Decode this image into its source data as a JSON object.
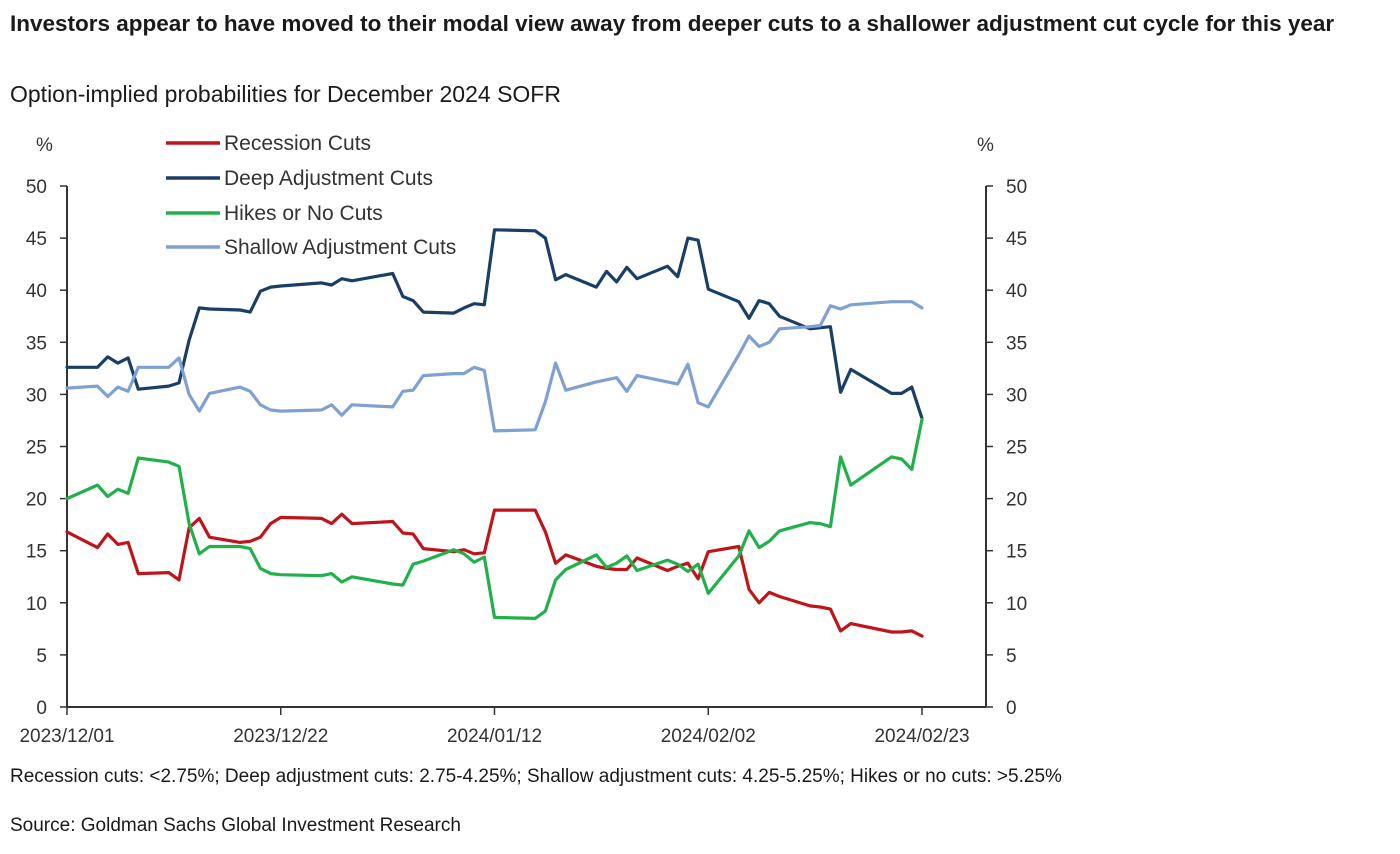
{
  "header": {
    "title": "Investors appear to have moved to their modal view away from deeper cuts to a shallower adjustment cut cycle for this year",
    "subtitle": "Option-implied probabilities for December 2024 SOFR"
  },
  "footer": {
    "note": "Recession cuts: <2.75%; Deep adjustment cuts: 2.75-4.25%; Shallow adjustment cuts: 4.25-5.25%; Hikes or no cuts: >5.25%",
    "source": "Source: Goldman Sachs Global Investment Research"
  },
  "chart_data": {
    "type": "line",
    "title": "Investors appear to have moved to their modal view away from deeper cuts to a shallower adjustment cut cycle for this year",
    "subtitle": "Option-implied probabilities for December 2024 SOFR",
    "y_unit_left": "%",
    "y_unit_right": "%",
    "ylim": [
      0,
      50
    ],
    "y_ticks": [
      0,
      5,
      10,
      15,
      20,
      25,
      30,
      35,
      40,
      45,
      50
    ],
    "x_range": [
      "2023/12/01",
      "2024/02/23"
    ],
    "x_ticks": [
      "2023/12/01",
      "2023/12/22",
      "2024/01/12",
      "2024/02/02",
      "2024/02/23"
    ],
    "grid": false,
    "legend_position": "top-left",
    "colors": {
      "recession": "#c0141b",
      "deep": "#1a3f66",
      "hikes": "#21b14b",
      "shallow": "#7ea1d2",
      "axis": "#333333"
    },
    "series": [
      {
        "name": "Recession Cuts",
        "key": "recession",
        "x": [
          "2023/12/01",
          "2023/12/04",
          "2023/12/05",
          "2023/12/06",
          "2023/12/07",
          "2023/12/08",
          "2023/12/11",
          "2023/12/12",
          "2023/12/13",
          "2023/12/14",
          "2023/12/15",
          "2023/12/18",
          "2023/12/19",
          "2023/12/20",
          "2023/12/21",
          "2023/12/22",
          "2023/12/26",
          "2023/12/27",
          "2023/12/28",
          "2023/12/29",
          "2024/01/02",
          "2024/01/03",
          "2024/01/04",
          "2024/01/05",
          "2024/01/08",
          "2024/01/09",
          "2024/01/10",
          "2024/01/11",
          "2024/01/12",
          "2024/01/16",
          "2024/01/17",
          "2024/01/18",
          "2024/01/19",
          "2024/01/22",
          "2024/01/23",
          "2024/01/24",
          "2024/01/25",
          "2024/01/26",
          "2024/01/29",
          "2024/01/30",
          "2024/01/31",
          "2024/02/01",
          "2024/02/02",
          "2024/02/05",
          "2024/02/06",
          "2024/02/07",
          "2024/02/08",
          "2024/02/09",
          "2024/02/12",
          "2024/02/13",
          "2024/02/14",
          "2024/02/15",
          "2024/02/16",
          "2024/02/20",
          "2024/02/21",
          "2024/02/22",
          "2024/02/23"
        ],
        "values": [
          16.8,
          15.3,
          16.6,
          15.6,
          15.8,
          12.8,
          12.9,
          12.2,
          17.2,
          18.1,
          16.3,
          15.8,
          15.9,
          16.3,
          17.6,
          18.2,
          18.1,
          17.6,
          18.5,
          17.6,
          17.8,
          16.7,
          16.6,
          15.2,
          14.9,
          15.1,
          14.7,
          14.8,
          18.9,
          18.9,
          16.8,
          13.8,
          14.6,
          13.5,
          13.3,
          13.2,
          13.2,
          14.3,
          13.1,
          13.5,
          13.8,
          12.3,
          14.9,
          15.4,
          11.3,
          10.0,
          11.0,
          10.6,
          9.7,
          9.6,
          9.4,
          7.3,
          8.0,
          7.2,
          7.2,
          7.3,
          6.8
        ]
      },
      {
        "name": "Deep Adjustment Cuts",
        "key": "deep",
        "x": [
          "2023/12/01",
          "2023/12/04",
          "2023/12/05",
          "2023/12/06",
          "2023/12/07",
          "2023/12/08",
          "2023/12/11",
          "2023/12/12",
          "2023/12/13",
          "2023/12/14",
          "2023/12/15",
          "2023/12/18",
          "2023/12/19",
          "2023/12/20",
          "2023/12/21",
          "2023/12/22",
          "2023/12/26",
          "2023/12/27",
          "2023/12/28",
          "2023/12/29",
          "2024/01/02",
          "2024/01/03",
          "2024/01/04",
          "2024/01/05",
          "2024/01/08",
          "2024/01/09",
          "2024/01/10",
          "2024/01/11",
          "2024/01/12",
          "2024/01/16",
          "2024/01/17",
          "2024/01/18",
          "2024/01/19",
          "2024/01/22",
          "2024/01/23",
          "2024/01/24",
          "2024/01/25",
          "2024/01/26",
          "2024/01/29",
          "2024/01/30",
          "2024/01/31",
          "2024/02/01",
          "2024/02/02",
          "2024/02/05",
          "2024/02/06",
          "2024/02/07",
          "2024/02/08",
          "2024/02/09",
          "2024/02/12",
          "2024/02/13",
          "2024/02/14",
          "2024/02/15",
          "2024/02/16",
          "2024/02/20",
          "2024/02/21",
          "2024/02/22",
          "2024/02/23"
        ],
        "values": [
          32.6,
          32.6,
          33.6,
          33.0,
          33.5,
          30.5,
          30.8,
          31.1,
          35.2,
          38.3,
          38.2,
          38.1,
          37.9,
          39.9,
          40.3,
          40.4,
          40.7,
          40.5,
          41.1,
          40.9,
          41.6,
          39.4,
          39.0,
          37.9,
          37.8,
          38.3,
          38.7,
          38.6,
          45.8,
          45.7,
          45.0,
          41.0,
          41.5,
          40.3,
          41.8,
          40.8,
          42.2,
          41.1,
          42.3,
          41.3,
          45.0,
          44.8,
          40.1,
          38.9,
          37.3,
          39.0,
          38.7,
          37.5,
          36.3,
          36.4,
          36.5,
          30.2,
          32.4,
          30.1,
          30.1,
          30.7,
          27.7
        ]
      },
      {
        "name": "Hikes or No Cuts",
        "key": "hikes",
        "x": [
          "2023/12/01",
          "2023/12/04",
          "2023/12/05",
          "2023/12/06",
          "2023/12/07",
          "2023/12/08",
          "2023/12/11",
          "2023/12/12",
          "2023/12/13",
          "2023/12/14",
          "2023/12/15",
          "2023/12/18",
          "2023/12/19",
          "2023/12/20",
          "2023/12/21",
          "2023/12/22",
          "2023/12/26",
          "2023/12/27",
          "2023/12/28",
          "2023/12/29",
          "2024/01/02",
          "2024/01/03",
          "2024/01/04",
          "2024/01/05",
          "2024/01/08",
          "2024/01/09",
          "2024/01/10",
          "2024/01/11",
          "2024/01/12",
          "2024/01/16",
          "2024/01/17",
          "2024/01/18",
          "2024/01/19",
          "2024/01/22",
          "2024/01/23",
          "2024/01/24",
          "2024/01/25",
          "2024/01/26",
          "2024/01/29",
          "2024/01/30",
          "2024/01/31",
          "2024/02/01",
          "2024/02/02",
          "2024/02/05",
          "2024/02/06",
          "2024/02/07",
          "2024/02/08",
          "2024/02/09",
          "2024/02/12",
          "2024/02/13",
          "2024/02/14",
          "2024/02/15",
          "2024/02/16",
          "2024/02/20",
          "2024/02/21",
          "2024/02/22",
          "2024/02/23"
        ],
        "values": [
          20.0,
          21.3,
          20.2,
          20.9,
          20.5,
          23.9,
          23.5,
          23.1,
          17.6,
          14.7,
          15.4,
          15.4,
          15.2,
          13.3,
          12.8,
          12.7,
          12.6,
          12.8,
          12.0,
          12.5,
          11.8,
          11.7,
          13.7,
          14.0,
          15.1,
          14.7,
          13.9,
          14.4,
          8.6,
          8.5,
          9.2,
          12.2,
          13.2,
          14.6,
          13.4,
          13.8,
          14.5,
          13.1,
          14.1,
          13.7,
          13.0,
          13.7,
          10.9,
          14.5,
          16.9,
          15.3,
          15.9,
          16.9,
          17.7,
          17.6,
          17.3,
          24.0,
          21.3,
          24.0,
          23.8,
          22.8,
          27.6
        ]
      },
      {
        "name": "Shallow Adjustment Cuts",
        "key": "shallow",
        "x": [
          "2023/12/01",
          "2023/12/04",
          "2023/12/05",
          "2023/12/06",
          "2023/12/07",
          "2023/12/08",
          "2023/12/11",
          "2023/12/12",
          "2023/12/13",
          "2023/12/14",
          "2023/12/15",
          "2023/12/18",
          "2023/12/19",
          "2023/12/20",
          "2023/12/21",
          "2023/12/22",
          "2023/12/26",
          "2023/12/27",
          "2023/12/28",
          "2023/12/29",
          "2024/01/02",
          "2024/01/03",
          "2024/01/04",
          "2024/01/05",
          "2024/01/08",
          "2024/01/09",
          "2024/01/10",
          "2024/01/11",
          "2024/01/12",
          "2024/01/16",
          "2024/01/17",
          "2024/01/18",
          "2024/01/19",
          "2024/01/22",
          "2024/01/23",
          "2024/01/24",
          "2024/01/25",
          "2024/01/26",
          "2024/01/29",
          "2024/01/30",
          "2024/01/31",
          "2024/02/01",
          "2024/02/02",
          "2024/02/05",
          "2024/02/06",
          "2024/02/07",
          "2024/02/08",
          "2024/02/09",
          "2024/02/12",
          "2024/02/13",
          "2024/02/14",
          "2024/02/15",
          "2024/02/16",
          "2024/02/20",
          "2024/02/21",
          "2024/02/22",
          "2024/02/23"
        ],
        "values": [
          30.6,
          30.8,
          29.8,
          30.7,
          30.3,
          32.6,
          32.6,
          33.5,
          30.0,
          28.4,
          30.1,
          30.7,
          30.3,
          29.0,
          28.5,
          28.4,
          28.5,
          29.0,
          28.0,
          29.0,
          28.8,
          30.3,
          30.4,
          31.8,
          32.0,
          32.0,
          32.6,
          32.3,
          26.5,
          26.6,
          29.3,
          33.0,
          30.4,
          31.2,
          31.4,
          31.6,
          30.3,
          31.8,
          31.2,
          31.0,
          32.9,
          29.2,
          28.8,
          33.8,
          35.6,
          34.6,
          35.0,
          36.3,
          36.5,
          36.6,
          38.5,
          38.2,
          38.6,
          38.9,
          38.9,
          38.9,
          38.3
        ]
      }
    ]
  }
}
